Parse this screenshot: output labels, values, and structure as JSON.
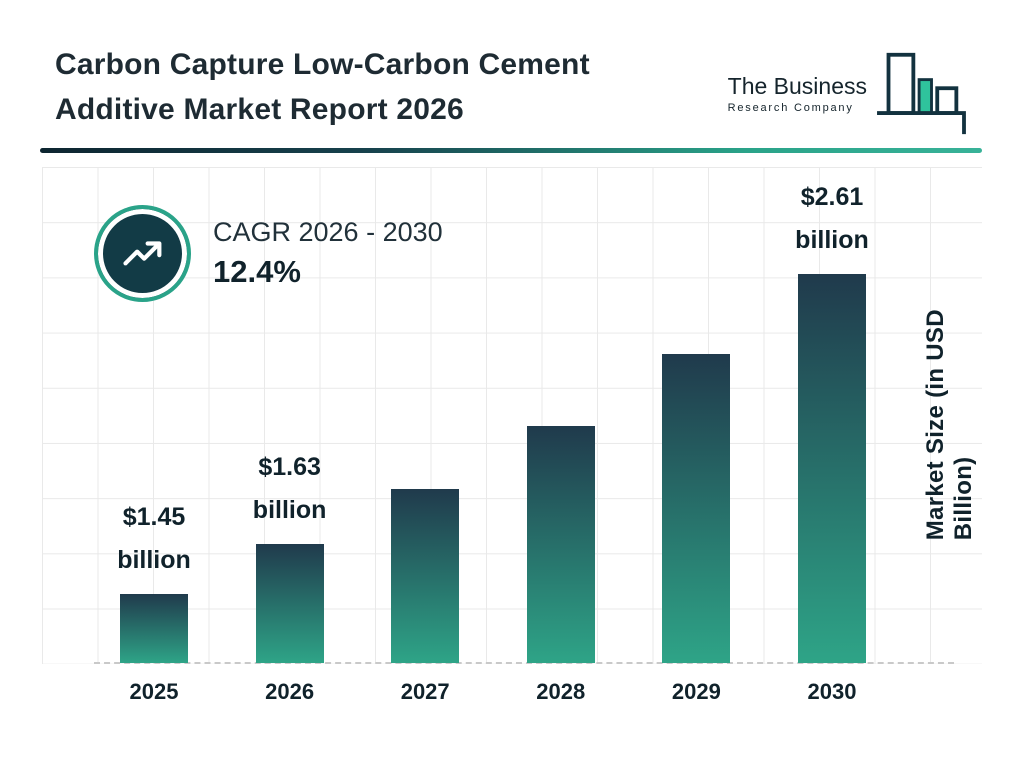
{
  "header": {
    "title_line1": "Carbon Capture Low-Carbon Cement",
    "title_line2": "Additive Market Report 2026",
    "logo": {
      "name_line1": "The Business",
      "name_line2": "Research Company"
    }
  },
  "cagr_badge": {
    "label": "CAGR 2026 - 2030",
    "value": "12.4%"
  },
  "chart_data": {
    "type": "bar",
    "title": "Carbon Capture Low-Carbon Cement Additive Market Report 2026",
    "categories": [
      "2025",
      "2026",
      "2027",
      "2028",
      "2029",
      "2030"
    ],
    "values": [
      1.45,
      1.63,
      1.83,
      2.06,
      2.32,
      2.61
    ],
    "value_labels": [
      {
        "amount": "$1.45",
        "unit": "billion"
      },
      {
        "amount": "$1.63",
        "unit": "billion"
      },
      null,
      null,
      null,
      {
        "amount": "$2.61",
        "unit": "billion"
      }
    ],
    "xlabel": "",
    "ylabel": "Market Size (in USD Billion)",
    "ylim": [
      1.2,
      3.0
    ],
    "grid": true,
    "legend_position": "none"
  },
  "colors": {
    "accent_teal": "#2aa389",
    "dark_navy": "#123b46",
    "bar_top": "#203a4c",
    "bar_bottom": "#2ea487",
    "grid_line": "#e9e9e9",
    "text_dark": "#1e2b33"
  }
}
